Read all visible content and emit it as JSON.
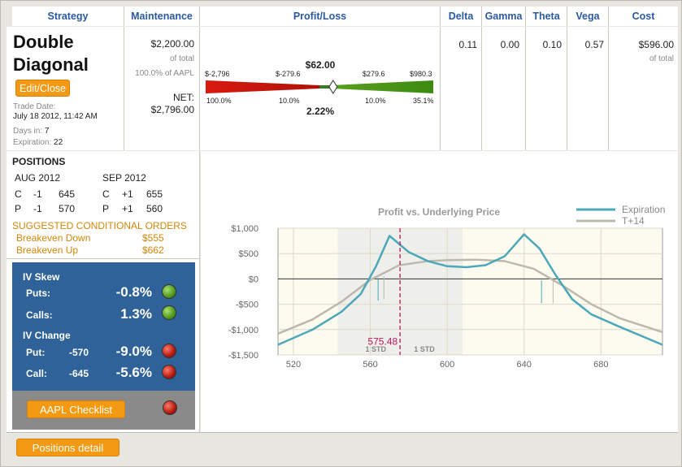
{
  "headers": {
    "strategy": "Strategy",
    "maintenance": "Maintenance",
    "profit_loss": "Profit/Loss",
    "delta": "Delta",
    "gamma": "Gamma",
    "theta": "Theta",
    "vega": "Vega",
    "cost": "Cost"
  },
  "strategy": {
    "name_line1": "Double",
    "name_line2": "Diagonal",
    "edit_label": "Edit/Close",
    "trade_date_label": "Trade Date:",
    "trade_date": "July 18 2012, 11:42 AM",
    "days_in_label": "Days in:",
    "days_in": "7",
    "expiration_label": "Expiration:",
    "expiration": "22"
  },
  "maintenance": {
    "amount": "$2,200.00",
    "of_total": "of total",
    "pct_of": "100.0% of AAPL",
    "net_label": "NET:",
    "net": "$2,796.00"
  },
  "pl_bar": {
    "current": "$62.00",
    "pct": "2.22%",
    "left_max": "$-2,796",
    "left_mid": "$-279.6",
    "right_mid": "$279.6",
    "right_max": "$980.3",
    "left_max_pct": "100.0%",
    "left_mid_pct": "10.0%",
    "right_mid_pct": "10.0%",
    "right_max_pct": "35.1%",
    "marker_fraction": 0.56
  },
  "greeks": {
    "delta": "0.11",
    "gamma": "0.00",
    "theta": "0.10",
    "vega": "0.57"
  },
  "cost": {
    "amount": "$596.00",
    "of_total": "of total"
  },
  "positions": {
    "title": "POSITIONS",
    "col1_month": "AUG 2012",
    "col2_month": "SEP 2012",
    "rows": [
      {
        "t1": "C",
        "q1": "-1",
        "s1": "645",
        "t2": "C",
        "q2": "+1",
        "s2": "655"
      },
      {
        "t1": "P",
        "q1": "-1",
        "s1": "570",
        "t2": "P",
        "q2": "+1",
        "s2": "560"
      }
    ],
    "suggested_title": "SUGGESTED CONDITIONAL ORDERS",
    "orders": [
      {
        "label": "Breakeven Down",
        "value": "$555"
      },
      {
        "label": "Breakeven Up",
        "value": "$662"
      }
    ]
  },
  "iv": {
    "skew_title": "IV Skew",
    "puts_label": "Puts:",
    "puts_value": "-0.8%",
    "calls_label": "Calls:",
    "calls_value": "1.3%",
    "change_title": "IV Change",
    "put_label": "Put:",
    "put_strike": "-570",
    "put_value": "-9.0%",
    "call_label": "Call:",
    "call_strike": "-645",
    "call_value": "-5.6%",
    "colors": {
      "green": "#4f9a1e",
      "red": "#b01a10"
    }
  },
  "checklist_label": "AAPL Checklist",
  "positions_detail_label": "Positions detail",
  "chart_data": {
    "type": "line",
    "title": "Profit vs. Underlying Price",
    "xlabel": "",
    "ylabel": "",
    "xlim": [
      512,
      712
    ],
    "ylim": [
      -1500,
      1000
    ],
    "x_ticks": [
      520,
      560,
      600,
      640,
      680
    ],
    "y_ticks": [
      1000,
      500,
      0,
      -500,
      -1000,
      -1500
    ],
    "y_tick_labels": [
      "$1,000",
      "$500",
      "$0",
      "-$500",
      "-$1,000",
      "-$1,500"
    ],
    "current_price": 575.48,
    "current_price_label": "575.48",
    "std_band": [
      543,
      608
    ],
    "std_labels": [
      "1 STD",
      "1 STD"
    ],
    "legend_position": "top-right",
    "series": [
      {
        "name": "Expiration",
        "color": "#4aa8b8",
        "x": [
          512,
          530,
          545,
          555,
          563,
          570,
          580,
          590,
          600,
          610,
          620,
          630,
          640,
          648,
          656,
          665,
          675,
          690,
          712
        ],
        "y": [
          -1300,
          -1000,
          -650,
          -300,
          250,
          850,
          530,
          350,
          250,
          230,
          270,
          450,
          880,
          600,
          100,
          -400,
          -700,
          -950,
          -1300
        ]
      },
      {
        "name": "T+14",
        "color": "#bdb8ae",
        "x": [
          512,
          530,
          545,
          560,
          575,
          590,
          600,
          615,
          630,
          645,
          660,
          675,
          690,
          712
        ],
        "y": [
          -1080,
          -800,
          -450,
          -20,
          270,
          350,
          370,
          380,
          350,
          200,
          -130,
          -500,
          -780,
          -1050
        ]
      }
    ]
  }
}
